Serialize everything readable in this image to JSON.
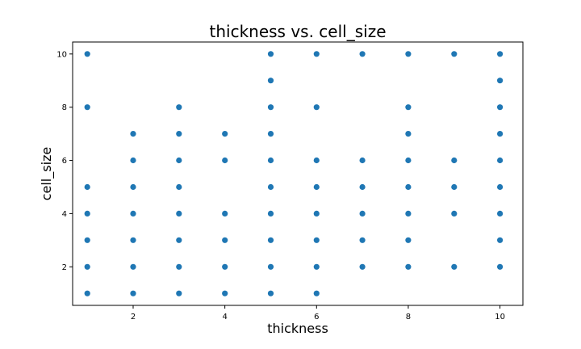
{
  "chart_data": {
    "type": "scatter",
    "title": "thickness vs. cell_size",
    "xlabel": "thickness",
    "ylabel": "cell_size",
    "xlim": [
      0.68,
      10.5
    ],
    "ylim": [
      0.55,
      10.45
    ],
    "x_ticks": [
      2,
      4,
      6,
      8,
      10
    ],
    "y_ticks": [
      2,
      4,
      6,
      8,
      10
    ],
    "grid": false,
    "color": "#1f77b4",
    "points": [
      [
        1,
        1
      ],
      [
        1,
        2
      ],
      [
        1,
        3
      ],
      [
        1,
        4
      ],
      [
        1,
        5
      ],
      [
        1,
        8
      ],
      [
        1,
        10
      ],
      [
        2,
        1
      ],
      [
        2,
        2
      ],
      [
        2,
        3
      ],
      [
        2,
        4
      ],
      [
        2,
        5
      ],
      [
        2,
        6
      ],
      [
        2,
        7
      ],
      [
        3,
        1
      ],
      [
        3,
        2
      ],
      [
        3,
        3
      ],
      [
        3,
        4
      ],
      [
        3,
        5
      ],
      [
        3,
        6
      ],
      [
        3,
        7
      ],
      [
        3,
        8
      ],
      [
        4,
        1
      ],
      [
        4,
        2
      ],
      [
        4,
        3
      ],
      [
        4,
        4
      ],
      [
        4,
        6
      ],
      [
        4,
        7
      ],
      [
        5,
        1
      ],
      [
        5,
        2
      ],
      [
        5,
        3
      ],
      [
        5,
        4
      ],
      [
        5,
        5
      ],
      [
        5,
        6
      ],
      [
        5,
        7
      ],
      [
        5,
        8
      ],
      [
        5,
        9
      ],
      [
        5,
        10
      ],
      [
        6,
        1
      ],
      [
        6,
        2
      ],
      [
        6,
        3
      ],
      [
        6,
        4
      ],
      [
        6,
        5
      ],
      [
        6,
        6
      ],
      [
        6,
        8
      ],
      [
        6,
        10
      ],
      [
        7,
        2
      ],
      [
        7,
        3
      ],
      [
        7,
        4
      ],
      [
        7,
        5
      ],
      [
        7,
        6
      ],
      [
        7,
        10
      ],
      [
        8,
        2
      ],
      [
        8,
        3
      ],
      [
        8,
        4
      ],
      [
        8,
        5
      ],
      [
        8,
        6
      ],
      [
        8,
        7
      ],
      [
        8,
        8
      ],
      [
        8,
        10
      ],
      [
        9,
        2
      ],
      [
        9,
        4
      ],
      [
        9,
        5
      ],
      [
        9,
        6
      ],
      [
        9,
        10
      ],
      [
        10,
        2
      ],
      [
        10,
        3
      ],
      [
        10,
        4
      ],
      [
        10,
        5
      ],
      [
        10,
        6
      ],
      [
        10,
        7
      ],
      [
        10,
        8
      ],
      [
        10,
        9
      ],
      [
        10,
        10
      ]
    ]
  }
}
